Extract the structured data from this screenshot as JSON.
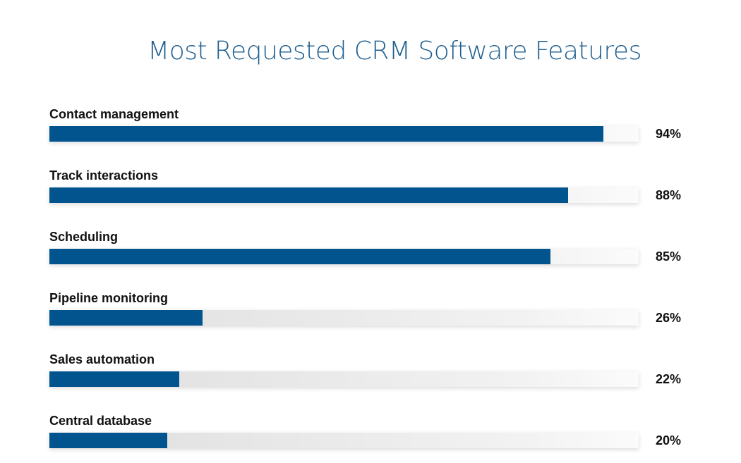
{
  "chart_data": {
    "type": "bar",
    "orientation": "horizontal",
    "title": "Most Requested CRM Software Features",
    "categories": [
      "Contact management",
      "Track interactions",
      "Scheduling",
      "Pipeline monitoring",
      "Sales automation",
      "Central database"
    ],
    "values": [
      94,
      88,
      85,
      26,
      22,
      20
    ],
    "value_labels": [
      "94%",
      "88%",
      "85%",
      "26%",
      "22%",
      "20%"
    ],
    "xlim": [
      0,
      100
    ],
    "unit": "%",
    "bar_color": "#02548f",
    "track_color": "#e6e6e6",
    "title_color": "#1f5f8f"
  }
}
